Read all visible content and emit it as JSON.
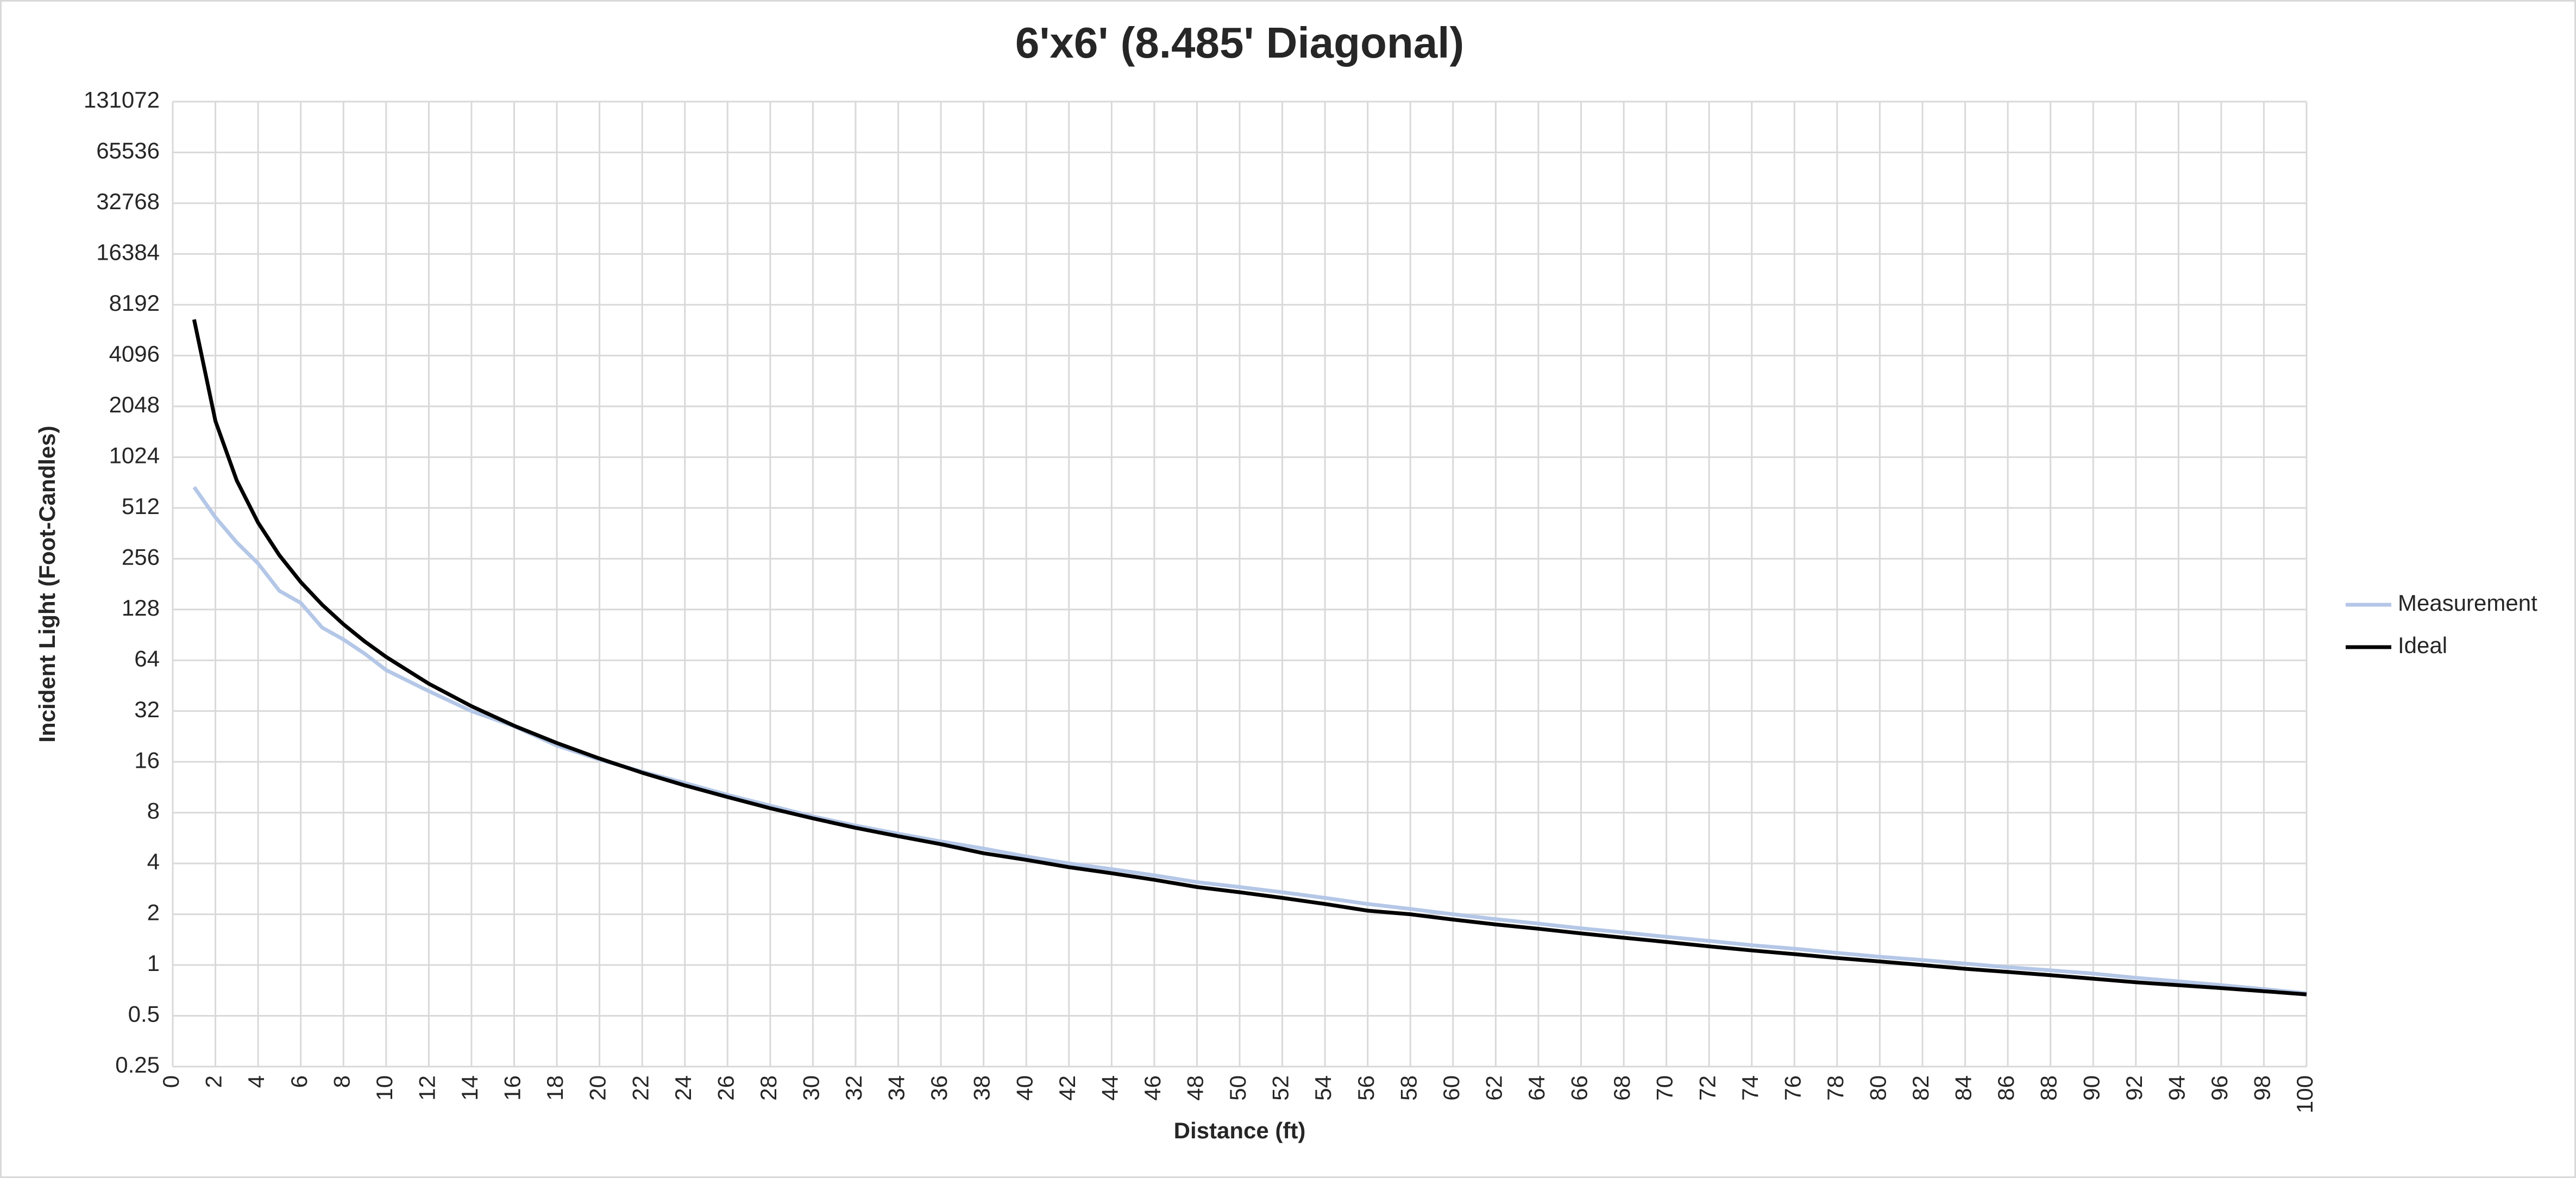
{
  "chart_data": {
    "type": "line",
    "title": "6'x6' (8.485' Diagonal)",
    "x_label": "Distance (ft)",
    "y_label": "Incident Light (Foot-Candles)",
    "y_scale": "log2",
    "grid": true,
    "legend": "right",
    "x": [
      1,
      2,
      3,
      4,
      5,
      6,
      7,
      8,
      9,
      10,
      12,
      14,
      16,
      18,
      20,
      22,
      24,
      26,
      28,
      30,
      32,
      34,
      36,
      38,
      40,
      42,
      44,
      46,
      48,
      50,
      52,
      54,
      56,
      58,
      60,
      62,
      64,
      66,
      68,
      70,
      72,
      74,
      76,
      78,
      80,
      82,
      84,
      86,
      88,
      90,
      92,
      94,
      96,
      98,
      100
    ],
    "series": [
      {
        "name": "Measurement",
        "color": "#b4c7e7",
        "values": [
          680,
          450,
          320,
          240,
          165,
          140,
          100,
          85,
          70,
          56,
          42,
          32,
          26,
          20,
          16.5,
          14,
          12,
          10.2,
          8.8,
          7.6,
          6.7,
          6.0,
          5.4,
          4.9,
          4.4,
          4.0,
          3.7,
          3.4,
          3.1,
          2.9,
          2.7,
          2.5,
          2.3,
          2.15,
          2.0,
          1.87,
          1.76,
          1.65,
          1.56,
          1.47,
          1.39,
          1.31,
          1.25,
          1.18,
          1.12,
          1.07,
          1.02,
          0.97,
          0.93,
          0.89,
          0.84,
          0.8,
          0.76,
          0.72,
          0.68
        ]
      },
      {
        "name": "Ideal",
        "color": "#000000",
        "values": [
          6700,
          1675,
          744.4,
          418.8,
          268,
          186.1,
          136.7,
          104.7,
          82.7,
          67,
          46.5,
          34.2,
          26.2,
          20.7,
          16.75,
          13.8,
          11.6,
          9.9,
          8.5,
          7.4,
          6.5,
          5.8,
          5.2,
          4.6,
          4.2,
          3.8,
          3.5,
          3.2,
          2.9,
          2.7,
          2.5,
          2.3,
          2.1,
          2.0,
          1.86,
          1.74,
          1.64,
          1.54,
          1.45,
          1.37,
          1.29,
          1.22,
          1.16,
          1.1,
          1.05,
          1.0,
          0.95,
          0.91,
          0.87,
          0.83,
          0.79,
          0.76,
          0.73,
          0.7,
          0.67
        ]
      }
    ],
    "xlim": [
      0,
      100
    ],
    "xticks": [
      0,
      2,
      4,
      6,
      8,
      10,
      12,
      14,
      16,
      18,
      20,
      22,
      24,
      26,
      28,
      30,
      32,
      34,
      36,
      38,
      40,
      42,
      44,
      46,
      48,
      50,
      52,
      54,
      56,
      58,
      60,
      62,
      64,
      66,
      68,
      70,
      72,
      74,
      76,
      78,
      80,
      82,
      84,
      86,
      88,
      90,
      92,
      94,
      96,
      98,
      100
    ],
    "ylim": [
      0.25,
      131072
    ],
    "yticks": [
      0.25,
      0.5,
      1,
      2,
      4,
      8,
      16,
      32,
      64,
      128,
      256,
      512,
      1024,
      2048,
      4096,
      8192,
      16384,
      32768,
      65536,
      131072
    ]
  }
}
